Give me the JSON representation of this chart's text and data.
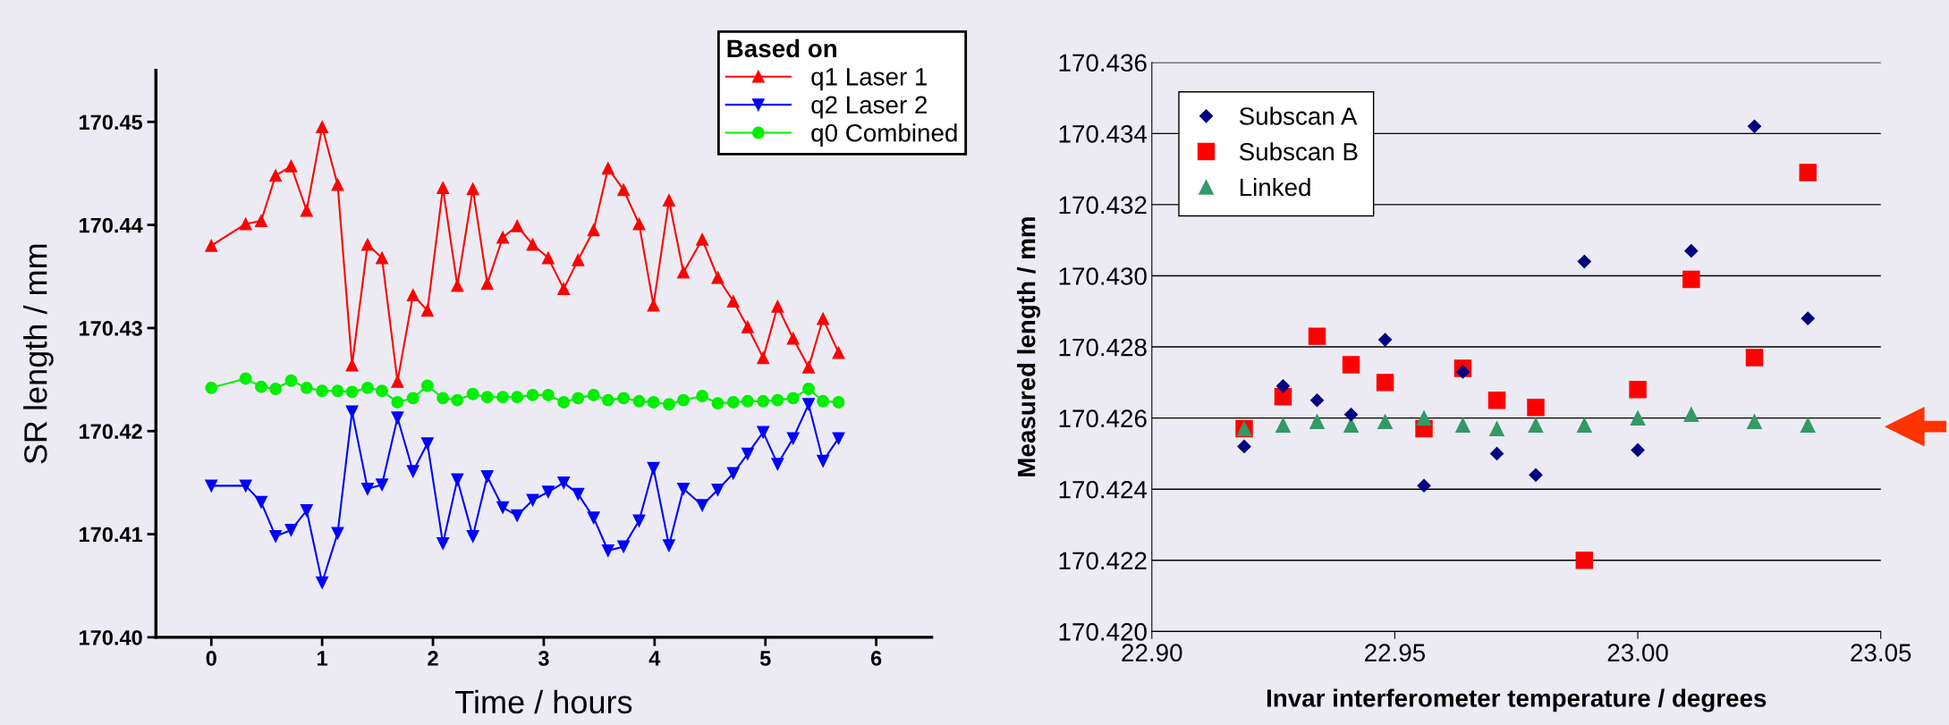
{
  "chart_data": [
    {
      "type": "line",
      "xlabel": "Time / hours",
      "ylabel": "SR length / mm",
      "legend_title": "Based on",
      "legend": "top right",
      "grid": false,
      "line_style": "solid",
      "x": [
        0,
        0.31,
        0.45,
        0.58,
        0.72,
        0.86,
        1.0,
        1.14,
        1.27,
        1.41,
        1.54,
        1.68,
        1.82,
        1.95,
        2.09,
        2.22,
        2.36,
        2.49,
        2.63,
        2.76,
        2.9,
        3.04,
        3.18,
        3.31,
        3.45,
        3.58,
        3.72,
        3.86,
        3.99,
        4.13,
        4.26,
        4.43,
        4.57,
        4.71,
        4.84,
        4.98,
        5.11,
        5.25,
        5.39,
        5.52,
        5.66
      ],
      "xlim": [
        -0.5,
        6.5
      ],
      "xticks": [
        0,
        1,
        2,
        3,
        4,
        5,
        6
      ],
      "ylim": [
        170.4,
        170.455
      ],
      "yticks": [
        {
          "value": 170.4,
          "label": "170.40"
        },
        170.41,
        170.42,
        170.43,
        170.44,
        170.45
      ],
      "series": [
        {
          "name": "q1 Laser 1",
          "color": "#ff0000",
          "marker": "triangle",
          "values": [
            170.438,
            170.4401,
            170.4404,
            170.4448,
            170.4457,
            170.4414,
            170.4495,
            170.4439,
            170.4264,
            170.4381,
            170.4368,
            170.4248,
            170.4332,
            170.4317,
            170.4436,
            170.4341,
            170.4435,
            170.4343,
            170.4388,
            170.4399,
            170.4381,
            170.4368,
            170.4338,
            170.4366,
            170.4395,
            170.4455,
            170.4434,
            170.4401,
            170.4322,
            170.4424,
            170.4354,
            170.4386,
            170.4349,
            170.4326,
            170.4301,
            170.4271,
            170.4321,
            170.429,
            170.4262,
            170.4309,
            170.4276
          ]
        },
        {
          "name": "q2 Laser 2",
          "color": "#0000ff",
          "marker": "triangle_down",
          "values": [
            170.4147,
            170.4147,
            170.4131,
            170.4098,
            170.4104,
            170.4123,
            170.4053,
            170.4101,
            170.4219,
            170.4144,
            170.4148,
            170.4213,
            170.4161,
            170.4188,
            170.4091,
            170.4153,
            170.4098,
            170.4156,
            170.4126,
            170.4118,
            170.4133,
            170.4141,
            170.415,
            170.4139,
            170.4116,
            170.4084,
            170.4088,
            170.4113,
            170.4164,
            170.4089,
            170.4144,
            170.4128,
            170.4143,
            170.4159,
            170.4178,
            170.4199,
            170.4168,
            170.4193,
            170.4226,
            170.4171,
            170.4193
          ]
        },
        {
          "name": "q0 Combined",
          "color": "#00ee00",
          "marker": "circle",
          "values": [
            170.4242,
            170.4251,
            170.4243,
            170.4241,
            170.4249,
            170.4242,
            170.4239,
            170.4239,
            170.4238,
            170.4242,
            170.4239,
            170.4228,
            170.4232,
            170.4244,
            170.4232,
            170.423,
            170.4236,
            170.4233,
            170.4233,
            170.4233,
            170.4235,
            170.4235,
            170.4228,
            170.4232,
            170.4235,
            170.423,
            170.4232,
            170.4229,
            170.4228,
            170.4226,
            170.423,
            170.4234,
            170.4227,
            170.4228,
            170.4229,
            170.4229,
            170.423,
            170.4232,
            170.4241,
            170.4229,
            170.4228
          ]
        }
      ]
    },
    {
      "type": "scatter",
      "xlabel": "Invar interferometer temperature / degrees",
      "ylabel": "Measured length / mm",
      "legend": "top left",
      "grid": "y",
      "x": [
        22.919,
        22.927,
        22.934,
        22.941,
        22.948,
        22.956,
        22.964,
        22.971,
        22.979,
        22.989,
        23.0,
        23.011,
        23.024,
        23.035
      ],
      "xlim": [
        22.9,
        23.05
      ],
      "xticks": [
        {
          "value": 22.9,
          "label": "22.90"
        },
        22.95,
        {
          "value": 23.0,
          "label": "23.00"
        },
        23.05
      ],
      "ylim": [
        170.42,
        170.436
      ],
      "yticks": [
        {
          "value": 170.42,
          "label": "170.420"
        },
        170.422,
        170.424,
        170.426,
        170.428,
        {
          "value": 170.43,
          "label": "170.430"
        },
        170.432,
        170.434,
        170.436
      ],
      "series": [
        {
          "name": "Subscan A",
          "color": "#000080",
          "marker": "diamond",
          "values": [
            170.4252,
            170.4269,
            170.4265,
            170.4261,
            170.4282,
            170.4241,
            170.4273,
            170.425,
            170.4244,
            170.4304,
            170.4251,
            170.4307,
            170.4342,
            170.4288
          ]
        },
        {
          "name": "Subscan B",
          "color": "#ff0000",
          "marker": "square",
          "values": [
            170.4257,
            170.4266,
            170.4283,
            170.4275,
            170.427,
            170.4257,
            170.4274,
            170.4265,
            170.4263,
            170.422,
            170.4268,
            170.4299,
            170.4277,
            170.4329
          ]
        },
        {
          "name": "Linked",
          "color": "#339966",
          "marker": "triangle",
          "values": [
            170.4257,
            170.4258,
            170.4259,
            170.4258,
            170.4259,
            170.426,
            170.4258,
            170.4257,
            170.4258,
            170.4258,
            170.426,
            170.4261,
            170.4259,
            170.4258
          ]
        }
      ]
    }
  ]
}
